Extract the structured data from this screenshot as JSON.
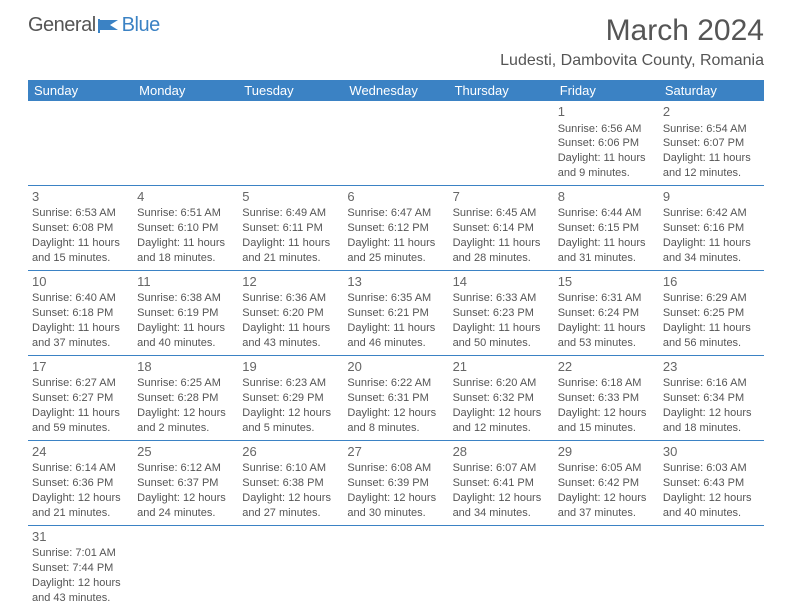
{
  "logo": {
    "text_left": "General",
    "text_right": "Blue"
  },
  "title": "March 2024",
  "location": "Ludesti, Dambovita County, Romania",
  "colors": {
    "header_bg": "#3b82c4",
    "header_text": "#ffffff",
    "border": "#3b82c4",
    "text": "#555555",
    "background": "#ffffff"
  },
  "day_headers": [
    "Sunday",
    "Monday",
    "Tuesday",
    "Wednesday",
    "Thursday",
    "Friday",
    "Saturday"
  ],
  "weeks": [
    [
      null,
      null,
      null,
      null,
      null,
      {
        "n": "1",
        "sr": "Sunrise: 6:56 AM",
        "ss": "Sunset: 6:06 PM",
        "dl": "Daylight: 11 hours and 9 minutes."
      },
      {
        "n": "2",
        "sr": "Sunrise: 6:54 AM",
        "ss": "Sunset: 6:07 PM",
        "dl": "Daylight: 11 hours and 12 minutes."
      }
    ],
    [
      {
        "n": "3",
        "sr": "Sunrise: 6:53 AM",
        "ss": "Sunset: 6:08 PM",
        "dl": "Daylight: 11 hours and 15 minutes."
      },
      {
        "n": "4",
        "sr": "Sunrise: 6:51 AM",
        "ss": "Sunset: 6:10 PM",
        "dl": "Daylight: 11 hours and 18 minutes."
      },
      {
        "n": "5",
        "sr": "Sunrise: 6:49 AM",
        "ss": "Sunset: 6:11 PM",
        "dl": "Daylight: 11 hours and 21 minutes."
      },
      {
        "n": "6",
        "sr": "Sunrise: 6:47 AM",
        "ss": "Sunset: 6:12 PM",
        "dl": "Daylight: 11 hours and 25 minutes."
      },
      {
        "n": "7",
        "sr": "Sunrise: 6:45 AM",
        "ss": "Sunset: 6:14 PM",
        "dl": "Daylight: 11 hours and 28 minutes."
      },
      {
        "n": "8",
        "sr": "Sunrise: 6:44 AM",
        "ss": "Sunset: 6:15 PM",
        "dl": "Daylight: 11 hours and 31 minutes."
      },
      {
        "n": "9",
        "sr": "Sunrise: 6:42 AM",
        "ss": "Sunset: 6:16 PM",
        "dl": "Daylight: 11 hours and 34 minutes."
      }
    ],
    [
      {
        "n": "10",
        "sr": "Sunrise: 6:40 AM",
        "ss": "Sunset: 6:18 PM",
        "dl": "Daylight: 11 hours and 37 minutes."
      },
      {
        "n": "11",
        "sr": "Sunrise: 6:38 AM",
        "ss": "Sunset: 6:19 PM",
        "dl": "Daylight: 11 hours and 40 minutes."
      },
      {
        "n": "12",
        "sr": "Sunrise: 6:36 AM",
        "ss": "Sunset: 6:20 PM",
        "dl": "Daylight: 11 hours and 43 minutes."
      },
      {
        "n": "13",
        "sr": "Sunrise: 6:35 AM",
        "ss": "Sunset: 6:21 PM",
        "dl": "Daylight: 11 hours and 46 minutes."
      },
      {
        "n": "14",
        "sr": "Sunrise: 6:33 AM",
        "ss": "Sunset: 6:23 PM",
        "dl": "Daylight: 11 hours and 50 minutes."
      },
      {
        "n": "15",
        "sr": "Sunrise: 6:31 AM",
        "ss": "Sunset: 6:24 PM",
        "dl": "Daylight: 11 hours and 53 minutes."
      },
      {
        "n": "16",
        "sr": "Sunrise: 6:29 AM",
        "ss": "Sunset: 6:25 PM",
        "dl": "Daylight: 11 hours and 56 minutes."
      }
    ],
    [
      {
        "n": "17",
        "sr": "Sunrise: 6:27 AM",
        "ss": "Sunset: 6:27 PM",
        "dl": "Daylight: 11 hours and 59 minutes."
      },
      {
        "n": "18",
        "sr": "Sunrise: 6:25 AM",
        "ss": "Sunset: 6:28 PM",
        "dl": "Daylight: 12 hours and 2 minutes."
      },
      {
        "n": "19",
        "sr": "Sunrise: 6:23 AM",
        "ss": "Sunset: 6:29 PM",
        "dl": "Daylight: 12 hours and 5 minutes."
      },
      {
        "n": "20",
        "sr": "Sunrise: 6:22 AM",
        "ss": "Sunset: 6:31 PM",
        "dl": "Daylight: 12 hours and 8 minutes."
      },
      {
        "n": "21",
        "sr": "Sunrise: 6:20 AM",
        "ss": "Sunset: 6:32 PM",
        "dl": "Daylight: 12 hours and 12 minutes."
      },
      {
        "n": "22",
        "sr": "Sunrise: 6:18 AM",
        "ss": "Sunset: 6:33 PM",
        "dl": "Daylight: 12 hours and 15 minutes."
      },
      {
        "n": "23",
        "sr": "Sunrise: 6:16 AM",
        "ss": "Sunset: 6:34 PM",
        "dl": "Daylight: 12 hours and 18 minutes."
      }
    ],
    [
      {
        "n": "24",
        "sr": "Sunrise: 6:14 AM",
        "ss": "Sunset: 6:36 PM",
        "dl": "Daylight: 12 hours and 21 minutes."
      },
      {
        "n": "25",
        "sr": "Sunrise: 6:12 AM",
        "ss": "Sunset: 6:37 PM",
        "dl": "Daylight: 12 hours and 24 minutes."
      },
      {
        "n": "26",
        "sr": "Sunrise: 6:10 AM",
        "ss": "Sunset: 6:38 PM",
        "dl": "Daylight: 12 hours and 27 minutes."
      },
      {
        "n": "27",
        "sr": "Sunrise: 6:08 AM",
        "ss": "Sunset: 6:39 PM",
        "dl": "Daylight: 12 hours and 30 minutes."
      },
      {
        "n": "28",
        "sr": "Sunrise: 6:07 AM",
        "ss": "Sunset: 6:41 PM",
        "dl": "Daylight: 12 hours and 34 minutes."
      },
      {
        "n": "29",
        "sr": "Sunrise: 6:05 AM",
        "ss": "Sunset: 6:42 PM",
        "dl": "Daylight: 12 hours and 37 minutes."
      },
      {
        "n": "30",
        "sr": "Sunrise: 6:03 AM",
        "ss": "Sunset: 6:43 PM",
        "dl": "Daylight: 12 hours and 40 minutes."
      }
    ],
    [
      {
        "n": "31",
        "sr": "Sunrise: 7:01 AM",
        "ss": "Sunset: 7:44 PM",
        "dl": "Daylight: 12 hours and 43 minutes."
      },
      null,
      null,
      null,
      null,
      null,
      null
    ]
  ]
}
